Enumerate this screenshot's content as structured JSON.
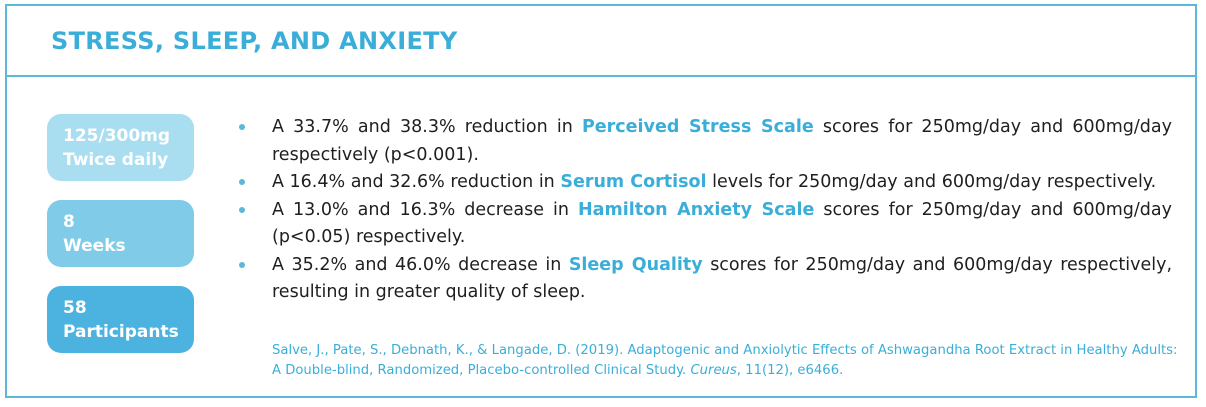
{
  "header": {
    "title": "STRESS, SLEEP, AND ANXIETY"
  },
  "colors": {
    "accent": "#3aaed8",
    "border": "#5bb8d6",
    "pill_light": "#a9def0",
    "pill_mid": "#7fcbe8",
    "pill_dark": "#4cb3e0"
  },
  "stats": [
    {
      "line1": "125/300mg",
      "line2": "Twice daily"
    },
    {
      "line1": "8",
      "line2": "Weeks"
    },
    {
      "line1": "58",
      "line2": "Participants"
    }
  ],
  "bullets": [
    {
      "before": "A 33.7% and 38.3% reduction in ",
      "highlight": "Perceived Stress Scale",
      "after": " scores for 250mg/day and 600mg/day respectively (p<0.001)."
    },
    {
      "before": "A 16.4% and 32.6% reduction in ",
      "highlight": "Serum Cortisol",
      "after": " levels for 250mg/day and 600mg/day respectively."
    },
    {
      "before": "A 13.0% and 16.3% decrease in ",
      "highlight": "Hamilton Anxiety Scale",
      "after": " scores for 250mg/day and 600mg/day (p<0.05) respectively."
    },
    {
      "before": "A 35.2% and 46.0% decrease in ",
      "highlight": "Sleep Quality",
      "after": " scores for 250mg/day and 600mg/day respectively, resulting in greater quality of sleep."
    }
  ],
  "citation": {
    "text": "Salve, J., Pate, S., Debnath, K., & Langade, D. (2019). Adaptogenic and Anxiolytic Effects of Ashwagandha Root Extract in Healthy Adults: A Double-blind, Randomized, Placebo-controlled Clinical Study. ",
    "journal": "Cureus",
    "details": ", 11(12), e6466."
  }
}
